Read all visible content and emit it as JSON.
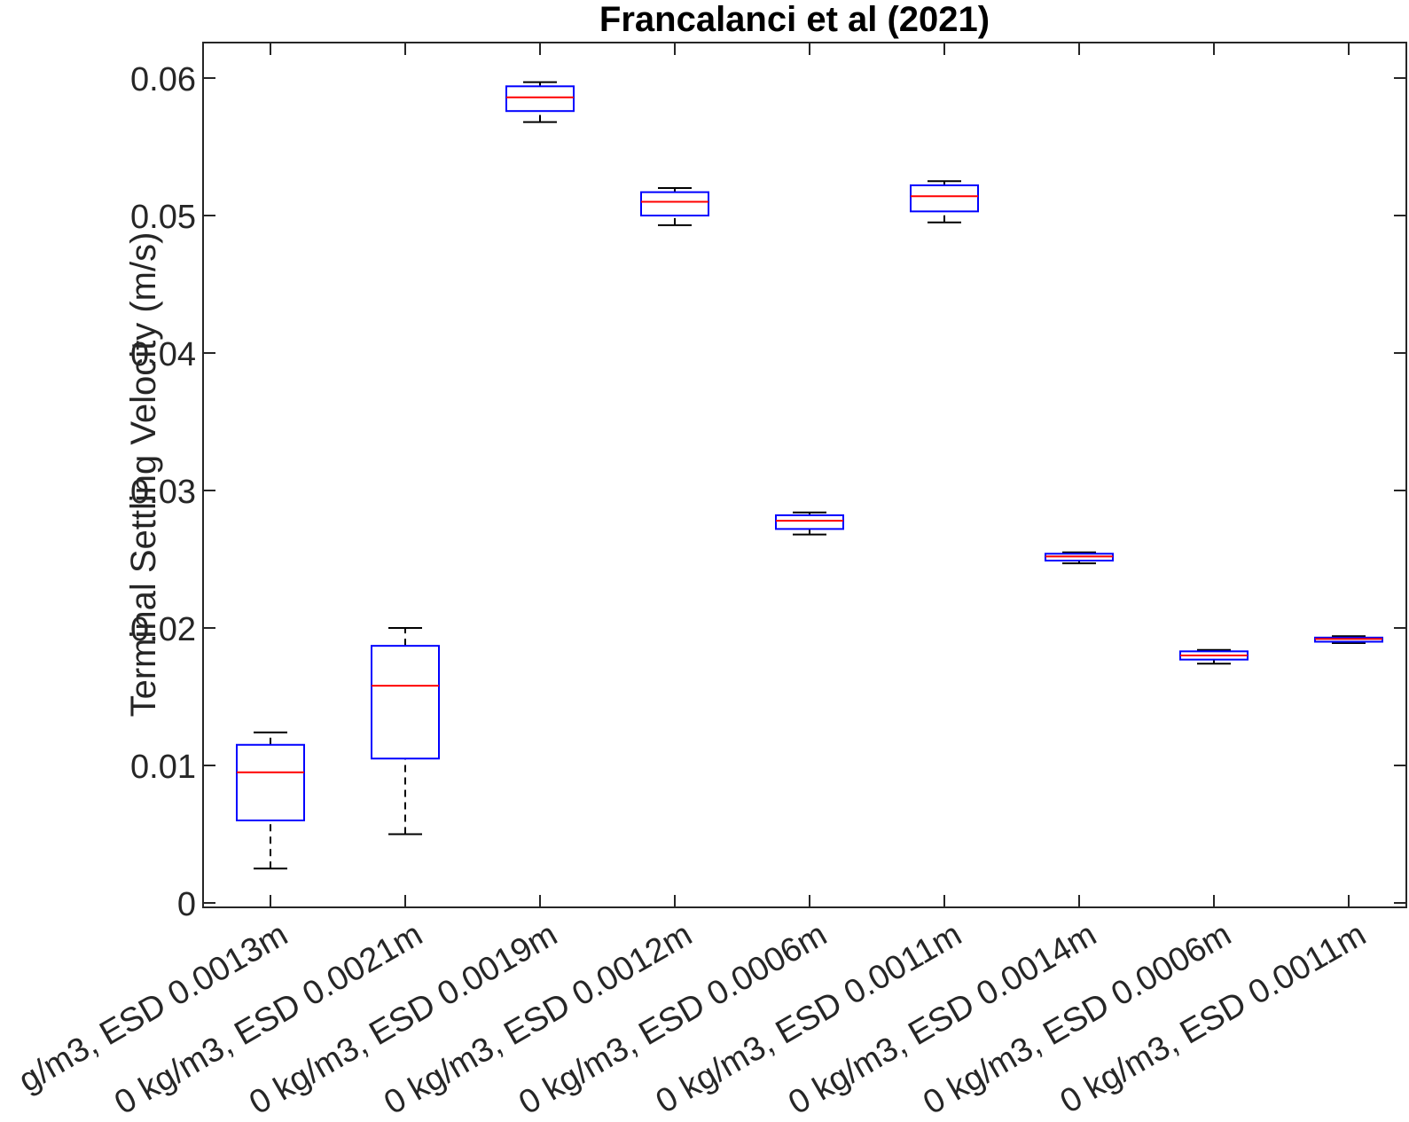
{
  "chart_data": {
    "type": "boxplot",
    "title": "Francalanci et al (2021)",
    "ylabel": "Terminal Settling Velocity (m/s)",
    "xlabel": "",
    "ylim": [
      0,
      0.063
    ],
    "yticks": [
      0,
      0.01,
      0.02,
      0.03,
      0.04,
      0.05,
      0.06
    ],
    "ytick_labels": [
      "0",
      "0.01",
      "0.02",
      "0.03",
      "0.04",
      "0.05",
      "0.06"
    ],
    "grid": false,
    "categories": [
      "g/m3, ESD 0.0013m",
      "0 kg/m3, ESD 0.0021m",
      "0 kg/m3, ESD 0.0019m",
      "0 kg/m3, ESD 0.0012m",
      "0 kg/m3, ESD 0.0006m",
      "0 kg/m3, ESD 0.0011m",
      "0 kg/m3, ESD 0.0014m",
      "0 kg/m3, ESD 0.0006m",
      "0 kg/m3, ESD 0.0011m"
    ],
    "boxes": [
      {
        "min": 0.0025,
        "q1": 0.006,
        "median": 0.0095,
        "q3": 0.0115,
        "max": 0.0124
      },
      {
        "min": 0.005,
        "q1": 0.0105,
        "median": 0.0158,
        "q3": 0.0187,
        "max": 0.02
      },
      {
        "min": 0.0568,
        "q1": 0.0576,
        "median": 0.0586,
        "q3": 0.0594,
        "max": 0.0597
      },
      {
        "min": 0.0493,
        "q1": 0.05,
        "median": 0.051,
        "q3": 0.0517,
        "max": 0.052
      },
      {
        "min": 0.0268,
        "q1": 0.0272,
        "median": 0.0278,
        "q3": 0.0282,
        "max": 0.0284
      },
      {
        "min": 0.0495,
        "q1": 0.0503,
        "median": 0.0514,
        "q3": 0.0522,
        "max": 0.0525
      },
      {
        "min": 0.0247,
        "q1": 0.0249,
        "median": 0.0252,
        "q3": 0.0254,
        "max": 0.0255
      },
      {
        "min": 0.0174,
        "q1": 0.0177,
        "median": 0.018,
        "q3": 0.0183,
        "max": 0.0184
      },
      {
        "min": 0.0189,
        "q1": 0.019,
        "median": 0.0192,
        "q3": 0.0193,
        "max": 0.0194
      }
    ],
    "colors": {
      "box": "#0000ff",
      "median": "#ff0000",
      "whisker": "#000000",
      "axis": "#262626"
    }
  }
}
